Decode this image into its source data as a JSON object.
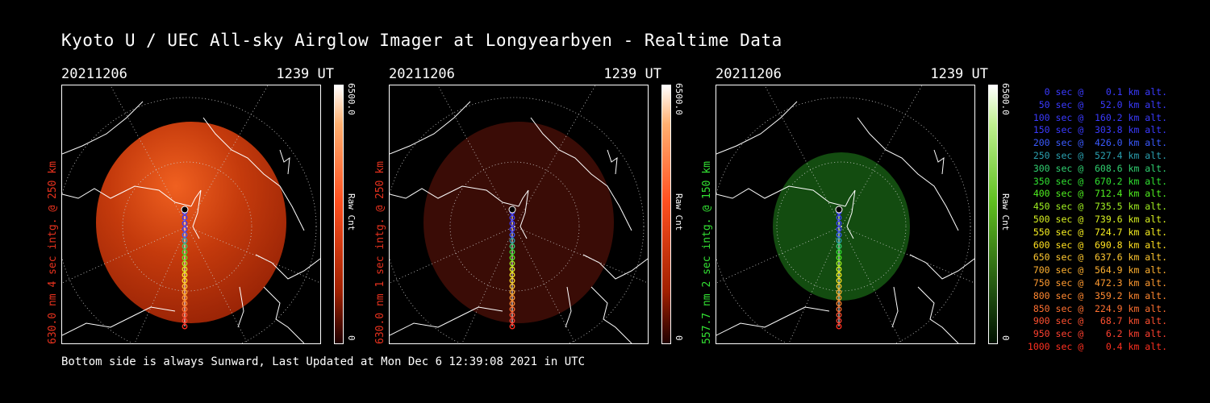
{
  "title": "Kyoto U / UEC All-sky Airglow Imager at Longyearbyen - Realtime Data",
  "footer": "Bottom side is always Sunward, Last Updated at Mon Dec  6 12:39:08 2021 in UTC",
  "panels": [
    {
      "date": "20211206",
      "time": "1239 UT",
      "ylabel": "630.0 nm  4 sec intg. @ 250 km",
      "label_color": "#e8321e",
      "cbar_max": "6500.0",
      "cbar_min": "0",
      "cbar_unit": "Raw Cnt",
      "emission": "red",
      "intensity": "bright"
    },
    {
      "date": "20211206",
      "time": "1239 UT",
      "ylabel": "630.0 nm  1 sec intg. @ 250 km",
      "label_color": "#e8321e",
      "cbar_max": "6500.0",
      "cbar_min": "0",
      "cbar_unit": "Raw Cnt",
      "emission": "red",
      "intensity": "dim"
    },
    {
      "date": "20211206",
      "time": "1239 UT",
      "ylabel": "557.7 nm  2 sec intg. @ 150 km",
      "label_color": "#33e033",
      "cbar_max": "6500.0",
      "cbar_min": "0",
      "cbar_unit": "Raw Cnt",
      "emission": "green",
      "intensity": "medium"
    }
  ],
  "legend": [
    {
      "text": "0 sec @    0.1 km alt.",
      "color": "#3a3aff"
    },
    {
      "text": "50 sec @   52.0 km alt.",
      "color": "#3a3aff"
    },
    {
      "text": "100 sec @  160.2 km alt.",
      "color": "#3a3aff"
    },
    {
      "text": "150 sec @  303.8 km alt.",
      "color": "#3a3aff"
    },
    {
      "text": "200 sec @  426.0 km alt.",
      "color": "#3a5aff"
    },
    {
      "text": "250 sec @  527.4 km alt.",
      "color": "#2aa0b0"
    },
    {
      "text": "300 sec @  608.6 km alt.",
      "color": "#30d070"
    },
    {
      "text": "350 sec @  670.2 km alt.",
      "color": "#30e030"
    },
    {
      "text": "400 sec @  712.4 km alt.",
      "color": "#50f020"
    },
    {
      "text": "450 sec @  735.5 km alt.",
      "color": "#a0f020"
    },
    {
      "text": "500 sec @  739.6 km alt.",
      "color": "#d8f020"
    },
    {
      "text": "550 sec @  724.7 km alt.",
      "color": "#f8f020"
    },
    {
      "text": "600 sec @  690.8 km alt.",
      "color": "#ffe020"
    },
    {
      "text": "650 sec @  637.6 km alt.",
      "color": "#ffc830"
    },
    {
      "text": "700 sec @  564.9 km alt.",
      "color": "#ffb030"
    },
    {
      "text": "750 sec @  472.3 km alt.",
      "color": "#ff9a30"
    },
    {
      "text": "800 sec @  359.2 km alt.",
      "color": "#ff8830"
    },
    {
      "text": "850 sec @  224.9 km alt.",
      "color": "#ff7030"
    },
    {
      "text": "900 sec @   68.7 km alt.",
      "color": "#ff5030"
    },
    {
      "text": "950 sec @    6.2 km alt.",
      "color": "#ff4030"
    },
    {
      "text": "1000 sec @    0.4 km alt.",
      "color": "#ff3020"
    }
  ]
}
